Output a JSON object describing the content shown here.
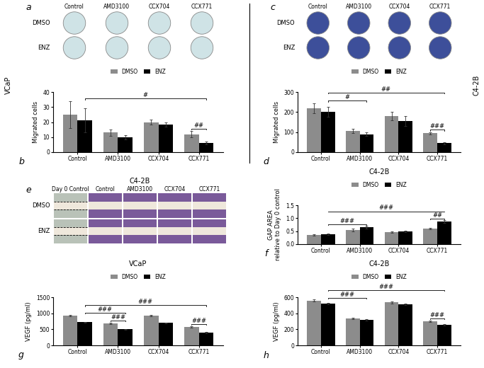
{
  "side_labels": [
    "VCaP",
    "C4-2B"
  ],
  "image_panels": [
    {
      "panel": "a",
      "columns": [
        "Control",
        "AMD3100",
        "CCX704",
        "CCX771"
      ],
      "rows": [
        "DMSO",
        "ENZ"
      ]
    },
    {
      "panel": "c",
      "columns": [
        "Control",
        "AMD3100",
        "CCX704",
        "CCX771"
      ],
      "rows": [
        "DMSO",
        "ENZ"
      ]
    },
    {
      "panel": "e",
      "title": "C4-2B",
      "columns": [
        "Day 0 Control",
        "Control",
        "AMD3100",
        "CCX704",
        "CCX771"
      ],
      "rows": [
        "DMSO",
        "ENZ"
      ]
    }
  ],
  "chart_data": [
    {
      "panel": "b",
      "type": "bar",
      "categories": [
        "Control",
        "AMD3100",
        "CCX704",
        "CCX771"
      ],
      "y_label": "Migrated cells",
      "ylim": [
        0,
        40
      ],
      "yticks": [
        0,
        10,
        20,
        30,
        40
      ],
      "legend": "upper center",
      "series": [
        {
          "name": "DMSO",
          "color": "#8c8c8c",
          "values": [
            25,
            13,
            20,
            12
          ],
          "errors": [
            9,
            2,
            1.5,
            2
          ]
        },
        {
          "name": "ENZ",
          "color": "#000000",
          "values": [
            21,
            10,
            18.5,
            6
          ],
          "errors": [
            8,
            1.5,
            1.5,
            1
          ]
        }
      ],
      "significance": [
        {
          "text": "##",
          "categories": [
            "CCX771"
          ]
        },
        {
          "text": "#",
          "categories": [
            "Control",
            "CCX771"
          ]
        }
      ]
    },
    {
      "panel": "d",
      "type": "bar",
      "categories": [
        "Control",
        "AMD3100",
        "CCX704",
        "CCX771"
      ],
      "y_label": "Migrated cells",
      "ylim": [
        0,
        300
      ],
      "yticks": [
        0,
        100,
        200,
        300
      ],
      "legend": "upper center",
      "series": [
        {
          "name": "DMSO",
          "color": "#8c8c8c",
          "values": [
            220,
            105,
            180,
            95
          ],
          "errors": [
            25,
            10,
            20,
            5
          ]
        },
        {
          "name": "ENZ",
          "color": "#000000",
          "values": [
            200,
            90,
            155,
            45
          ],
          "errors": [
            25,
            8,
            25,
            5
          ]
        }
      ],
      "significance": [
        {
          "text": "###",
          "categories": [
            "CCX771"
          ]
        },
        {
          "text": "#",
          "categories": [
            "Control",
            "AMD3100"
          ]
        },
        {
          "text": "##",
          "categories": [
            "Control",
            "CCX771"
          ]
        }
      ]
    },
    {
      "panel": "f",
      "type": "bar",
      "title": "C4-2B",
      "categories": [
        "Control",
        "AMD3100",
        "CCX704",
        "CCX771"
      ],
      "y_label": "GAP AREA\nrelative to Day 0 control",
      "ylim": [
        0,
        1.5
      ],
      "yticks": [
        {
          "value": 0,
          "label": "0.0"
        },
        0.5,
        {
          "value": 1,
          "label": "1.0"
        },
        1.5
      ],
      "legend": "upper center",
      "series": [
        {
          "name": "DMSO",
          "color": "#8c8c8c",
          "values": [
            0.35,
            0.55,
            0.47,
            0.6
          ],
          "errors": [
            0.02,
            0.05,
            0.03,
            0.04
          ]
        },
        {
          "name": "ENZ",
          "color": "#000000",
          "values": [
            0.38,
            0.65,
            0.5,
            0.88
          ],
          "errors": [
            0.03,
            0.05,
            0.03,
            0.05
          ]
        }
      ],
      "significance": [
        {
          "text": "##",
          "categories": [
            "CCX771"
          ]
        },
        {
          "text": "###",
          "categories": [
            "Control",
            "AMD3100"
          ]
        },
        {
          "text": "###",
          "categories": [
            "Control",
            "CCX771"
          ]
        }
      ]
    },
    {
      "panel": "g",
      "type": "bar",
      "title": "VCaP",
      "categories": [
        "Control",
        "AMD3100",
        "CCX704",
        "CCX771"
      ],
      "y_label": "VEGF (pg/ml)",
      "ylim": [
        0,
        1500
      ],
      "yticks": [
        0,
        500,
        1000,
        1500
      ],
      "legend": "upper center",
      "series": [
        {
          "name": "DMSO",
          "color": "#8c8c8c",
          "values": [
            930,
            690,
            930,
            580
          ],
          "errors": [
            20,
            20,
            20,
            20
          ]
        },
        {
          "name": "ENZ",
          "color": "#000000",
          "values": [
            720,
            500,
            700,
            400
          ],
          "errors": [
            15,
            15,
            15,
            15
          ]
        }
      ],
      "significance": [
        {
          "text": "###",
          "categories": [
            "AMD3100"
          ]
        },
        {
          "text": "###",
          "categories": [
            "CCX771"
          ]
        },
        {
          "text": "###",
          "categories": [
            "Control",
            "AMD3100"
          ]
        },
        {
          "text": "###",
          "categories": [
            "Control",
            "CCX771"
          ]
        }
      ]
    },
    {
      "panel": "h",
      "type": "bar",
      "title": "C4-2B",
      "categories": [
        "Control",
        "AMD3100",
        "CCX704",
        "CCX771"
      ],
      "y_label": "VEGF (pg/ml)",
      "ylim": [
        0,
        600
      ],
      "yticks": [
        0,
        200,
        400,
        600
      ],
      "legend": "upper center",
      "series": [
        {
          "name": "DMSO",
          "color": "#8c8c8c",
          "values": [
            560,
            335,
            535,
            300
          ],
          "errors": [
            10,
            8,
            10,
            10
          ]
        },
        {
          "name": "ENZ",
          "color": "#000000",
          "values": [
            520,
            320,
            510,
            255
          ],
          "errors": [
            8,
            8,
            8,
            8
          ]
        }
      ],
      "significance": [
        {
          "text": "###",
          "categories": [
            "CCX771"
          ]
        },
        {
          "text": "###",
          "categories": [
            "Control",
            "AMD3100"
          ]
        },
        {
          "text": "###",
          "categories": [
            "Control",
            "CCX771"
          ]
        }
      ]
    }
  ]
}
